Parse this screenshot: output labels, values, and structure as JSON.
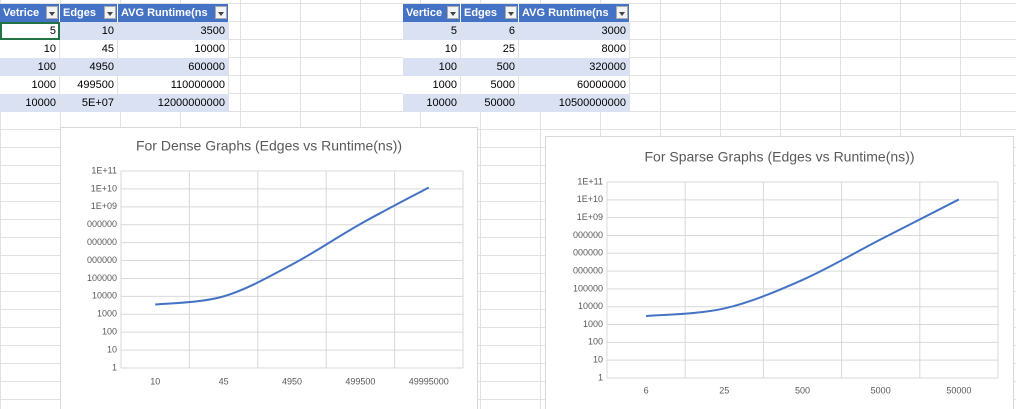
{
  "tables": [
    {
      "headers": [
        "Vetrice",
        "Edges",
        "AVG Runtime(ns"
      ],
      "rows": [
        [
          5,
          10,
          3500
        ],
        [
          10,
          45,
          10000
        ],
        [
          100,
          4950,
          600000
        ],
        [
          1000,
          499500,
          110000000
        ],
        [
          10000,
          "5E+07",
          12000000000
        ]
      ]
    },
    {
      "headers": [
        "Vertice",
        "Edges",
        "AVG Runtime(ns"
      ],
      "rows": [
        [
          5,
          6,
          3000
        ],
        [
          10,
          25,
          8000
        ],
        [
          100,
          500,
          320000
        ],
        [
          1000,
          5000,
          60000000
        ],
        [
          10000,
          50000,
          10500000000
        ]
      ]
    }
  ],
  "chart_data": [
    {
      "type": "line",
      "title": "For Dense Graphs (Edges vs Runtime(ns))",
      "categories": [
        "10",
        "45",
        "4950",
        "499500",
        "49995000"
      ],
      "values": [
        3500,
        10000,
        600000,
        110000000,
        12000000000
      ],
      "color": "#4472c4",
      "log_scale": true,
      "grid": true,
      "ylim": [
        1,
        100000000000
      ],
      "yticks": [
        1,
        10,
        100,
        1000,
        10000,
        100000,
        {
          "value": 1000000,
          "label": "000000"
        },
        {
          "value": 10000000,
          "label": "000000"
        },
        {
          "value": 100000000,
          "label": "000000"
        },
        {
          "value": 1000000000,
          "label": "1E+09"
        },
        {
          "value": 10000000000,
          "label": "1E+10"
        },
        {
          "value": 100000000000,
          "label": "1E+11"
        }
      ]
    },
    {
      "type": "line",
      "title": "For Sparse Graphs (Edges vs Runtime(ns))",
      "categories": [
        "6",
        "25",
        "500",
        "5000",
        "50000"
      ],
      "values": [
        3000,
        8000,
        320000,
        60000000,
        10500000000
      ],
      "color": "#4472c4",
      "log_scale": true,
      "grid": true,
      "ylim": [
        1,
        100000000000
      ],
      "yticks": [
        1,
        10,
        100,
        1000,
        10000,
        100000,
        {
          "value": 1000000,
          "label": "000000"
        },
        {
          "value": 10000000,
          "label": "000000"
        },
        {
          "value": 100000000,
          "label": "000000"
        },
        {
          "value": 1000000000,
          "label": "1E+09"
        },
        {
          "value": 10000000000,
          "label": "1E+10"
        },
        {
          "value": 100000000000,
          "label": "1E+11"
        }
      ]
    }
  ]
}
